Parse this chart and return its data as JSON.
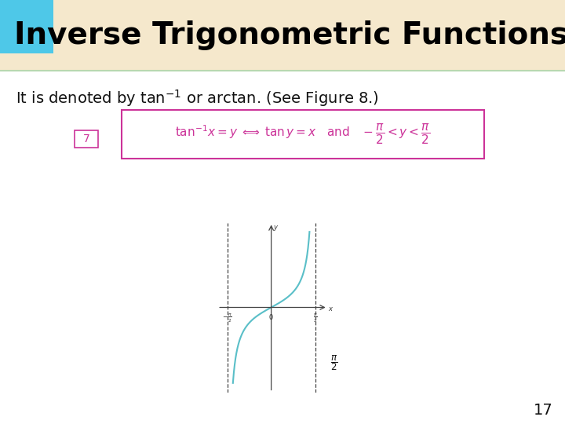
{
  "title": "Inverse Trigonometric Functions",
  "title_color": "#000000",
  "title_bg_color": "#f5e8cc",
  "title_accent_color": "#4ec8e8",
  "box_border_color": "#cc3399",
  "box_label": "7",
  "formula_color": "#cc3399",
  "curve_color": "#5abfc8",
  "axis_color": "#444444",
  "bg_color": "#ffffff",
  "figure_label": "Figure 8",
  "page_number": "17",
  "title_fontsize": 28,
  "subtitle_fontsize": 14,
  "formula_fontsize": 11
}
